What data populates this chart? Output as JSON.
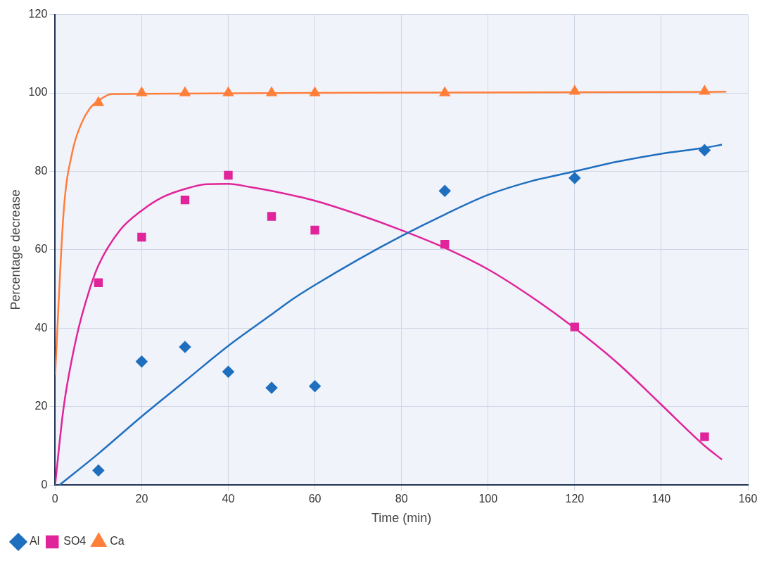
{
  "chart_data": {
    "type": "scatter",
    "xlabel": "Time (min)",
    "ylabel": "Percentage decrease",
    "xlim": [
      0,
      160
    ],
    "ylim": [
      0,
      120
    ],
    "xticks": [
      0,
      20,
      40,
      60,
      80,
      100,
      120,
      140,
      160
    ],
    "yticks": [
      0,
      20,
      40,
      60,
      80,
      100,
      120
    ],
    "grid": true,
    "legend": "bottom left",
    "series": [
      {
        "name": "Al",
        "color": "#1f6fbf",
        "marker": "diamond",
        "x": [
          10,
          20,
          30,
          40,
          50,
          60,
          90,
          120,
          150
        ],
        "values": [
          3.7,
          31.5,
          35.2,
          28.9,
          24.8,
          25.2,
          75,
          78.3,
          85.4
        ]
      },
      {
        "name": "SO4",
        "color": "#e0249a",
        "marker": "square",
        "x": [
          10,
          20,
          30,
          40,
          50,
          60,
          90,
          120,
          150
        ],
        "values": [
          51.6,
          63.2,
          72.7,
          79,
          68.5,
          65,
          61.4,
          40.3,
          12.3
        ]
      },
      {
        "name": "Ca",
        "color": "#ff7f3a",
        "marker": "triangle",
        "x": [
          10,
          20,
          30,
          40,
          50,
          60,
          90,
          120,
          150
        ],
        "values": [
          97.5,
          100,
          100,
          100,
          100,
          100,
          100,
          100.4,
          100.4
        ]
      },
      {
        "type": "line",
        "color": "#1f6fbf",
        "marker": "none",
        "x": [
          1,
          10,
          20,
          30,
          40,
          50,
          55,
          60,
          70,
          80,
          90,
          100,
          110,
          120,
          130,
          140,
          150,
          154
        ],
        "values": [
          0,
          8,
          17.5,
          26.5,
          35.5,
          43.5,
          47.5,
          51,
          57.5,
          63.5,
          69,
          74,
          77.5,
          80,
          82.5,
          84.5,
          86,
          86.8
        ]
      },
      {
        "type": "line",
        "color": "#e0249a",
        "marker": "none",
        "x": [
          0,
          2,
          5,
          8,
          10,
          15,
          20,
          25,
          30,
          35,
          40,
          45,
          50,
          60,
          70,
          80,
          90,
          100,
          110,
          120,
          130,
          140,
          150,
          154
        ],
        "values": [
          0,
          20,
          38,
          50,
          56,
          65,
          70,
          73.5,
          75.5,
          76.7,
          76.8,
          76,
          75,
          72.5,
          69,
          65,
          60.5,
          55,
          48,
          40,
          31,
          20.5,
          10,
          6.5
        ]
      },
      {
        "type": "line",
        "color": "#ff7f3a",
        "marker": "none",
        "x": [
          0,
          2,
          4,
          6,
          8,
          10,
          13,
          20,
          60,
          155
        ],
        "values": [
          28,
          70,
          85,
          92,
          96,
          98,
          99.7,
          99.8,
          100,
          100.3
        ]
      }
    ]
  }
}
